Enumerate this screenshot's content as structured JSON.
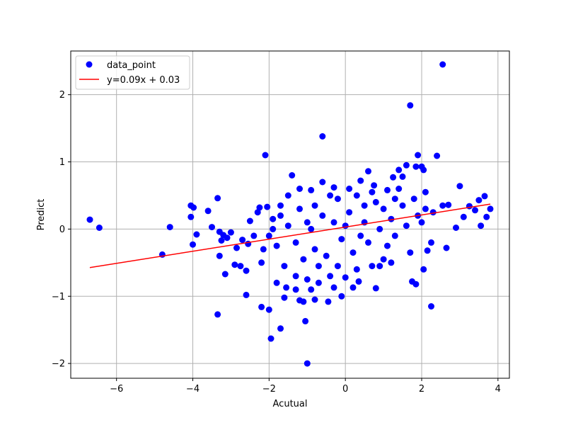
{
  "chart_data": {
    "type": "scatter",
    "xlabel": "Acutual",
    "ylabel": "Predict",
    "xlim": [
      -7.2,
      4.3
    ],
    "ylim": [
      -2.22,
      2.65
    ],
    "xticks": [
      -6,
      -4,
      -2,
      0,
      2,
      4
    ],
    "yticks": [
      -2,
      -1,
      0,
      1,
      2
    ],
    "grid": true,
    "legend_position": "top-left",
    "colors": {
      "points": "#0000ff",
      "fit_line": "#ff0000",
      "grid": "#b0b0b0"
    },
    "series": [
      {
        "name": "data_point",
        "kind": "scatter",
        "color": "#0000ff",
        "points": [
          [
            -6.7,
            0.14
          ],
          [
            -6.45,
            0.02
          ],
          [
            -4.6,
            0.03
          ],
          [
            -4.8,
            -0.38
          ],
          [
            -4.05,
            0.35
          ],
          [
            -3.98,
            0.32
          ],
          [
            -4.05,
            0.18
          ],
          [
            -4.0,
            -0.23
          ],
          [
            -3.9,
            -0.08
          ],
          [
            -3.6,
            0.27
          ],
          [
            -3.5,
            0.03
          ],
          [
            -3.35,
            0.46
          ],
          [
            -3.3,
            -0.04
          ],
          [
            -3.25,
            -0.17
          ],
          [
            -3.2,
            -0.09
          ],
          [
            -3.1,
            -0.13
          ],
          [
            -3.0,
            -0.05
          ],
          [
            -3.15,
            -0.67
          ],
          [
            -3.35,
            -1.27
          ],
          [
            -3.3,
            -0.4
          ],
          [
            -2.9,
            -0.53
          ],
          [
            -2.85,
            -0.28
          ],
          [
            -2.75,
            -0.55
          ],
          [
            -2.7,
            -0.16
          ],
          [
            -2.6,
            -0.62
          ],
          [
            -2.6,
            -0.98
          ],
          [
            -2.55,
            -0.22
          ],
          [
            -2.5,
            0.12
          ],
          [
            -2.4,
            -0.1
          ],
          [
            -2.3,
            0.25
          ],
          [
            -2.25,
            0.32
          ],
          [
            -2.2,
            -0.5
          ],
          [
            -2.15,
            -0.3
          ],
          [
            -2.2,
            -1.16
          ],
          [
            -2.0,
            -1.2
          ],
          [
            -1.95,
            -1.63
          ],
          [
            -2.1,
            1.1
          ],
          [
            -2.05,
            0.33
          ],
          [
            -1.9,
            0.15
          ],
          [
            -1.8,
            -0.8
          ],
          [
            -1.7,
            -1.48
          ],
          [
            -1.6,
            -1.02
          ],
          [
            -1.55,
            -0.87
          ],
          [
            -1.4,
            0.8
          ],
          [
            -1.3,
            -0.9
          ],
          [
            -1.2,
            -1.06
          ],
          [
            -1.1,
            -1.08
          ],
          [
            -1.05,
            -1.37
          ],
          [
            -1.0,
            -2.0
          ],
          [
            -0.9,
            -0.9
          ],
          [
            -0.8,
            -1.05
          ],
          [
            -0.6,
            1.38
          ],
          [
            -0.45,
            -1.08
          ],
          [
            -0.3,
            -0.87
          ],
          [
            -0.1,
            -1.0
          ],
          [
            0.2,
            -0.87
          ],
          [
            0.35,
            -0.78
          ],
          [
            0.6,
            0.86
          ],
          [
            0.8,
            -0.88
          ],
          [
            1.2,
            -0.5
          ],
          [
            1.25,
            0.77
          ],
          [
            1.4,
            0.88
          ],
          [
            1.5,
            0.78
          ],
          [
            1.6,
            0.95
          ],
          [
            1.7,
            1.84
          ],
          [
            1.75,
            -0.78
          ],
          [
            1.85,
            -0.82
          ],
          [
            1.85,
            0.93
          ],
          [
            1.9,
            1.1
          ],
          [
            2.0,
            0.93
          ],
          [
            2.05,
            0.88
          ],
          [
            2.1,
            0.55
          ],
          [
            2.05,
            -0.6
          ],
          [
            2.15,
            -0.32
          ],
          [
            2.25,
            -0.2
          ],
          [
            2.25,
            -1.15
          ],
          [
            2.4,
            1.09
          ],
          [
            2.55,
            2.45
          ],
          [
            2.55,
            0.35
          ],
          [
            2.65,
            -0.28
          ],
          [
            2.7,
            0.36
          ],
          [
            2.9,
            0.02
          ],
          [
            3.0,
            0.64
          ],
          [
            3.1,
            0.18
          ],
          [
            3.25,
            0.34
          ],
          [
            3.4,
            0.28
          ],
          [
            3.5,
            0.43
          ],
          [
            3.55,
            0.05
          ],
          [
            3.65,
            0.49
          ],
          [
            3.7,
            0.18
          ],
          [
            3.8,
            0.3
          ],
          [
            -1.5,
            0.5
          ],
          [
            -1.2,
            0.6
          ],
          [
            -0.9,
            0.58
          ],
          [
            -0.6,
            0.7
          ],
          [
            -0.3,
            0.62
          ],
          [
            0.1,
            0.6
          ],
          [
            0.4,
            0.72
          ],
          [
            0.75,
            0.65
          ],
          [
            1.1,
            0.58
          ],
          [
            -1.6,
            -0.55
          ],
          [
            -1.3,
            -0.7
          ],
          [
            -1.0,
            -0.75
          ],
          [
            -0.7,
            -0.8
          ],
          [
            -0.4,
            -0.7
          ],
          [
            0.0,
            -0.72
          ],
          [
            0.3,
            -0.6
          ],
          [
            0.7,
            -0.55
          ],
          [
            1.0,
            -0.45
          ],
          [
            -1.7,
            0.2
          ],
          [
            -1.5,
            0.05
          ],
          [
            -1.3,
            -0.2
          ],
          [
            -1.2,
            0.3
          ],
          [
            -1.0,
            0.1
          ],
          [
            -0.8,
            -0.3
          ],
          [
            -0.8,
            0.35
          ],
          [
            -0.6,
            0.2
          ],
          [
            -0.5,
            -0.4
          ],
          [
            -0.3,
            0.1
          ],
          [
            -0.2,
            0.45
          ],
          [
            -0.1,
            -0.15
          ],
          [
            0.1,
            0.25
          ],
          [
            0.2,
            -0.35
          ],
          [
            0.3,
            0.5
          ],
          [
            0.5,
            0.1
          ],
          [
            0.6,
            -0.2
          ],
          [
            0.8,
            0.4
          ],
          [
            0.9,
            0.0
          ],
          [
            1.0,
            0.3
          ],
          [
            1.2,
            0.15
          ],
          [
            1.3,
            -0.1
          ],
          [
            1.5,
            0.35
          ],
          [
            1.6,
            0.05
          ],
          [
            1.8,
            0.45
          ],
          [
            1.9,
            0.2
          ],
          [
            2.1,
            0.3
          ],
          [
            -1.1,
            -0.45
          ],
          [
            -0.9,
            0.0
          ],
          [
            -0.7,
            -0.55
          ],
          [
            -0.4,
            0.5
          ],
          [
            0.0,
            0.05
          ],
          [
            0.4,
            -0.1
          ],
          [
            0.7,
            0.55
          ],
          [
            1.1,
            -0.25
          ],
          [
            1.4,
            0.6
          ],
          [
            1.7,
            -0.35
          ],
          [
            -1.8,
            -0.25
          ],
          [
            -1.9,
            0.0
          ],
          [
            -2.0,
            -0.1
          ],
          [
            -1.7,
            0.35
          ],
          [
            -0.2,
            -0.55
          ],
          [
            0.5,
            0.35
          ],
          [
            0.9,
            -0.55
          ],
          [
            1.3,
            0.45
          ],
          [
            2.0,
            0.1
          ],
          [
            2.3,
            0.25
          ]
        ]
      },
      {
        "name": "y=0.09x + 0.03",
        "kind": "line",
        "color": "#ff0000",
        "slope": 0.09,
        "intercept": 0.03,
        "x_range": [
          -6.7,
          3.8
        ]
      }
    ]
  }
}
